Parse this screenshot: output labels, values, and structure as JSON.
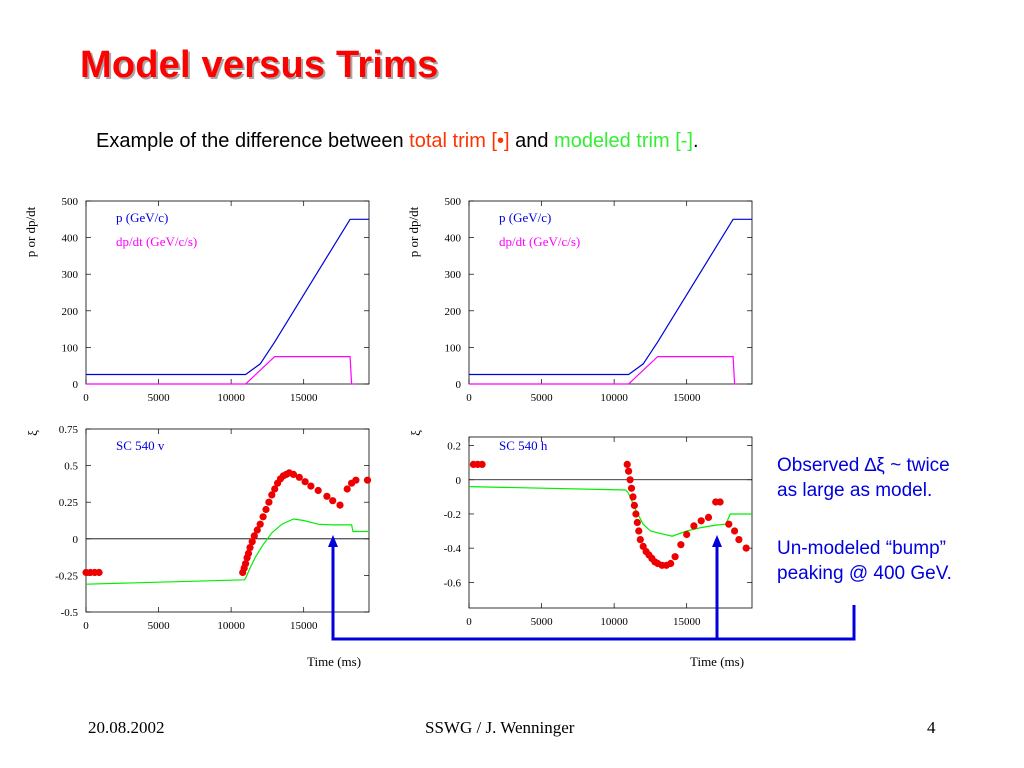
{
  "slide": {
    "title": "Model versus Trims",
    "subtitle": {
      "prefix": "Example of the difference between ",
      "total_trim": "total trim",
      "marker_total": "[•]",
      "connector": " and ",
      "modeled_trim": "modeled trim",
      "marker_model": "[-]",
      "end": "."
    },
    "note1": [
      "Observed ∆ξ ~ twice",
      "as large as model."
    ],
    "note2": [
      "Un-modeled “bump”",
      "peaking @ 400 GeV."
    ],
    "footer": {
      "date": "20.08.2002",
      "center": "SSWG / J. Wenninger",
      "page": "4"
    }
  },
  "colors": {
    "title": "#ff0000",
    "total_trim": "#ff3300",
    "model_text": "#33ee33",
    "note": "#0000dd",
    "p_curve": "#0000dd",
    "dpdt_curve": "#ff00ff",
    "trim_points": "#ee0000",
    "model_line": "#00ee00",
    "arrow": "#0000dd"
  },
  "chart_data": [
    {
      "type": "line",
      "ylabel": "p or dp/dt",
      "xlim": [
        0,
        19500
      ],
      "ylim": [
        0,
        500
      ],
      "xticks": [
        "0",
        "5000",
        "10000",
        "15000"
      ],
      "yticks": [
        "0",
        "100",
        "200",
        "300",
        "400",
        "500"
      ],
      "series": [
        {
          "name": "p (GeV/c)",
          "x": [
            0,
            11000,
            12000,
            13000,
            18200,
            19500
          ],
          "y": [
            26,
            26,
            55,
            115,
            450,
            450
          ]
        },
        {
          "name": "dp/dt (GeV/c/s)",
          "x": [
            0,
            11000,
            13000,
            18200,
            18300,
            18500
          ],
          "y": [
            0,
            0,
            75,
            75,
            0,
            0
          ]
        }
      ]
    },
    {
      "type": "line",
      "ylabel": "p or dp/dt",
      "xlim": [
        0,
        19500
      ],
      "ylim": [
        0,
        500
      ],
      "xticks": [
        "0",
        "5000",
        "10000",
        "15000"
      ],
      "yticks": [
        "0",
        "100",
        "200",
        "300",
        "400",
        "500"
      ],
      "series": [
        {
          "name": "p (GeV/c)",
          "x": [
            0,
            11000,
            12000,
            13000,
            18200,
            19500
          ],
          "y": [
            26,
            26,
            55,
            115,
            450,
            450
          ]
        },
        {
          "name": "dp/dt (GeV/c/s)",
          "x": [
            0,
            11000,
            13000,
            18200,
            18300,
            18500
          ],
          "y": [
            0,
            0,
            75,
            75,
            0,
            0
          ]
        }
      ]
    },
    {
      "type": "scatter",
      "ylabel": "ξ",
      "label": "SC 540 v",
      "xlabel": "Time (ms)",
      "xlim": [
        0,
        19500
      ],
      "ylim": [
        -0.5,
        0.75
      ],
      "xticks": [
        "0",
        "5000",
        "10000",
        "15000"
      ],
      "yticks": [
        "-0.5",
        "-0.25",
        "0",
        "0.25",
        "0.5",
        "0.75"
      ],
      "zero_line": 0,
      "series": [
        {
          "name": "total trim",
          "x": [
            0,
            300,
            600,
            900,
            10800,
            10900,
            11000,
            11100,
            11200,
            11300,
            11450,
            11600,
            11800,
            12000,
            12200,
            12400,
            12600,
            12800,
            13000,
            13200,
            13400,
            13600,
            13800,
            14000,
            14300,
            14700,
            15100,
            15500,
            16000,
            16600,
            17000,
            17500,
            18000,
            18300,
            18600,
            19400
          ],
          "y": [
            -0.23,
            -0.23,
            -0.23,
            -0.23,
            -0.23,
            -0.2,
            -0.17,
            -0.13,
            -0.1,
            -0.06,
            -0.02,
            0.02,
            0.06,
            0.1,
            0.15,
            0.2,
            0.25,
            0.3,
            0.34,
            0.38,
            0.41,
            0.43,
            0.44,
            0.45,
            0.44,
            0.42,
            0.39,
            0.36,
            0.33,
            0.29,
            0.26,
            0.23,
            0.34,
            0.38,
            0.4,
            0.4
          ]
        },
        {
          "name": "modeled trim",
          "x": [
            0,
            10900,
            11000,
            11300,
            11700,
            12200,
            12800,
            13500,
            14300,
            15000,
            16000,
            17000,
            18000,
            18300,
            18400,
            19500
          ],
          "y": [
            -0.31,
            -0.28,
            -0.27,
            -0.2,
            -0.12,
            -0.04,
            0.04,
            0.1,
            0.135,
            0.125,
            0.1,
            0.095,
            0.095,
            0.095,
            0.05,
            0.05
          ]
        }
      ]
    },
    {
      "type": "scatter",
      "ylabel": "ξ",
      "label": "SC 540 h",
      "xlabel": "Time (ms)",
      "xlim": [
        0,
        19500
      ],
      "ylim": [
        -0.75,
        0.25
      ],
      "xticks": [
        "0",
        "5000",
        "10000",
        "15000"
      ],
      "yticks": [
        "-0.6",
        "-0.4",
        "-0.2",
        "0",
        "0.2"
      ],
      "zero_line": 0,
      "series": [
        {
          "name": "total trim",
          "x": [
            300,
            600,
            900,
            10900,
            11000,
            11100,
            11200,
            11300,
            11400,
            11500,
            11600,
            11700,
            11800,
            12000,
            12200,
            12400,
            12600,
            12800,
            13000,
            13300,
            13600,
            13900,
            14200,
            14600,
            15000,
            15500,
            16000,
            16500,
            17000,
            17300,
            17900,
            18300,
            18600,
            19100
          ],
          "y": [
            0.09,
            0.09,
            0.09,
            0.09,
            0.05,
            0.0,
            -0.05,
            -0.1,
            -0.15,
            -0.2,
            -0.25,
            -0.3,
            -0.35,
            -0.39,
            -0.42,
            -0.44,
            -0.46,
            -0.48,
            -0.49,
            -0.5,
            -0.5,
            -0.49,
            -0.45,
            -0.38,
            -0.32,
            -0.27,
            -0.24,
            -0.22,
            -0.13,
            -0.13,
            -0.26,
            -0.3,
            -0.35,
            -0.4
          ]
        },
        {
          "name": "modeled trim",
          "x": [
            0,
            10800,
            11000,
            11500,
            12000,
            12500,
            13000,
            14000,
            15000,
            16000,
            17000,
            17700,
            18000,
            19500
          ],
          "y": [
            -0.04,
            -0.06,
            -0.08,
            -0.18,
            -0.26,
            -0.3,
            -0.31,
            -0.33,
            -0.3,
            -0.28,
            -0.265,
            -0.26,
            -0.2,
            -0.2
          ]
        }
      ]
    }
  ]
}
